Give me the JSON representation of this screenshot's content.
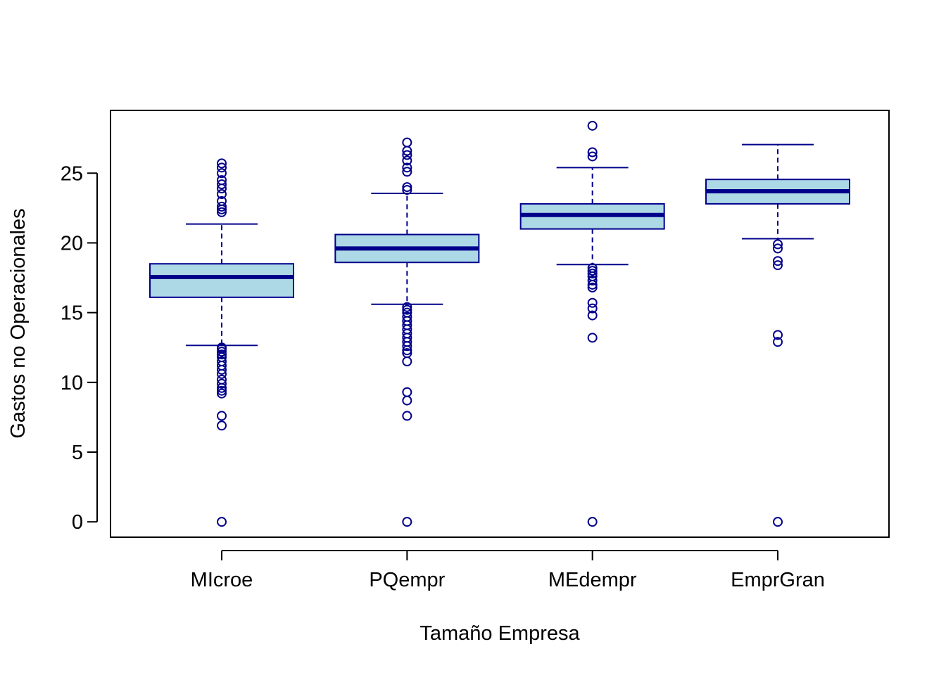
{
  "chart_data": {
    "type": "boxplot",
    "title": "",
    "xlabel": "Tamaño Empresa",
    "ylabel": "Gastos no Operacionales",
    "ylim": [
      -1.1,
      29.5
    ],
    "yticks": [
      0,
      5,
      10,
      15,
      20,
      25
    ],
    "ytick_labels": [
      "0",
      "5",
      "10",
      "15",
      "20",
      "25"
    ],
    "grid": false,
    "colors": {
      "box_fill": "#add8e6",
      "line": "#00008b"
    },
    "categories": [
      "MIcroe",
      "PQempr",
      "MEdempr",
      "EmprGran"
    ],
    "boxes": [
      {
        "category": "MIcroe",
        "whisker_low": 12.65,
        "q1": 16.1,
        "median": 17.55,
        "q3": 18.5,
        "whisker_high": 21.35,
        "outliers": [
          0,
          6.9,
          7.6,
          9.2,
          9.4,
          9.6,
          9.9,
          10.2,
          10.6,
          10.9,
          11.2,
          11.5,
          11.8,
          12.0,
          12.2,
          12.4,
          12.5,
          22.2,
          22.4,
          22.6,
          23.0,
          23.5,
          23.9,
          24.2,
          24.5,
          25.0,
          25.4,
          25.7
        ]
      },
      {
        "category": "PQempr",
        "whisker_low": 15.6,
        "q1": 18.6,
        "median": 19.6,
        "q3": 20.6,
        "whisker_high": 23.55,
        "outliers": [
          0,
          7.6,
          8.7,
          9.3,
          11.5,
          12.1,
          12.3,
          12.6,
          12.9,
          13.2,
          13.5,
          13.8,
          14.1,
          14.4,
          14.7,
          15.0,
          15.2,
          15.4,
          23.8,
          24.0,
          25.1,
          25.4,
          25.9,
          26.3,
          26.6,
          27.2
        ]
      },
      {
        "category": "MEdempr",
        "whisker_low": 18.45,
        "q1": 21.0,
        "median": 22.0,
        "q3": 22.8,
        "whisker_high": 25.4,
        "outliers": [
          0,
          13.2,
          14.8,
          15.3,
          15.7,
          16.8,
          17.0,
          17.3,
          17.6,
          17.8,
          18.0,
          18.2,
          26.2,
          26.5,
          28.4
        ]
      },
      {
        "category": "EmprGran",
        "whisker_low": 20.3,
        "q1": 22.8,
        "median": 23.7,
        "q3": 24.55,
        "whisker_high": 27.05,
        "outliers": [
          0,
          12.9,
          13.4,
          18.4,
          18.7,
          19.6,
          19.9
        ]
      }
    ]
  }
}
